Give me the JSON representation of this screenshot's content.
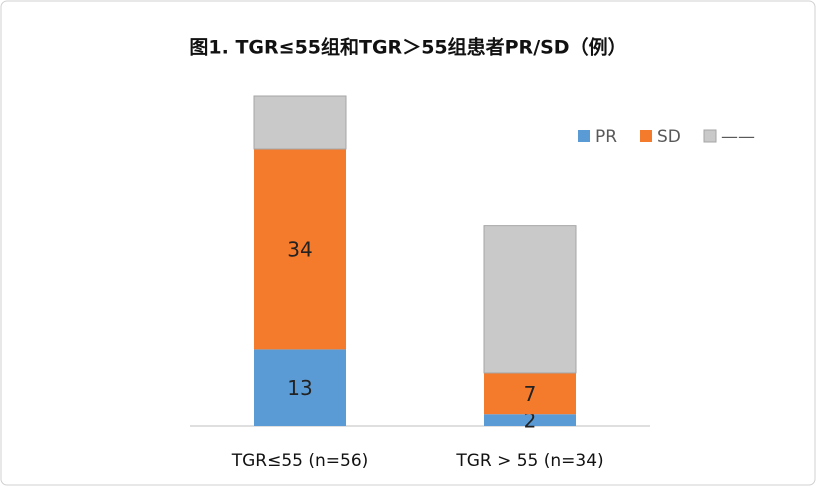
{
  "chart_data": {
    "type": "stacked-bar",
    "title": "图1. TGR≤55组和TGR＞55组患者PR/SD（例）",
    "categories": [
      "TGR≤55 (n=56)",
      "TGR > 55 (n=34)"
    ],
    "series": [
      {
        "name": "PR",
        "color": "#5b9bd5",
        "values": [
          13,
          2
        ],
        "show_labels": true
      },
      {
        "name": "SD",
        "color": "#f47a2c",
        "values": [
          34,
          7
        ],
        "show_labels": true
      },
      {
        "name": "——",
        "color": "#c9c9c9",
        "values": [
          9,
          25
        ],
        "show_labels": false
      }
    ],
    "ylim": [
      0,
      56
    ]
  }
}
